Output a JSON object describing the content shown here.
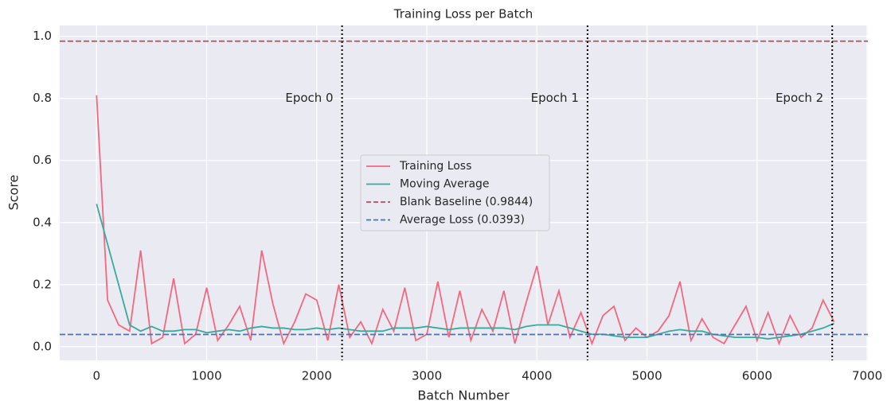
{
  "chart_data": {
    "type": "line",
    "title": "Training Loss per Batch",
    "xlabel": "Batch Number",
    "ylabel": "Score",
    "x": [
      0,
      100,
      200,
      300,
      400,
      500,
      600,
      700,
      800,
      900,
      1000,
      1100,
      1200,
      1300,
      1400,
      1500,
      1600,
      1700,
      1800,
      1900,
      2000,
      2100,
      2200,
      2300,
      2400,
      2500,
      2600,
      2700,
      2800,
      2900,
      3000,
      3100,
      3200,
      3300,
      3400,
      3500,
      3600,
      3700,
      3800,
      3900,
      4000,
      4100,
      4200,
      4300,
      4400,
      4500,
      4600,
      4700,
      4800,
      4900,
      5000,
      5100,
      5200,
      5300,
      5400,
      5500,
      5600,
      5700,
      5800,
      5900,
      6000,
      6100,
      6200,
      6300,
      6400,
      6500,
      6600,
      6700
    ],
    "series": [
      {
        "name": "Training Loss",
        "color": "#f3687f",
        "values": [
          0.81,
          0.15,
          0.07,
          0.05,
          0.31,
          0.01,
          0.03,
          0.22,
          0.01,
          0.04,
          0.19,
          0.02,
          0.07,
          0.13,
          0.02,
          0.31,
          0.14,
          0.01,
          0.08,
          0.17,
          0.15,
          0.02,
          0.2,
          0.03,
          0.08,
          0.01,
          0.12,
          0.05,
          0.19,
          0.02,
          0.04,
          0.21,
          0.03,
          0.18,
          0.02,
          0.12,
          0.05,
          0.18,
          0.01,
          0.14,
          0.26,
          0.07,
          0.18,
          0.03,
          0.11,
          0.01,
          0.1,
          0.13,
          0.02,
          0.06,
          0.03,
          0.05,
          0.1,
          0.21,
          0.02,
          0.09,
          0.03,
          0.01,
          0.07,
          0.13,
          0.02,
          0.11,
          0.01,
          0.1,
          0.03,
          0.06,
          0.15,
          0.08
        ]
      },
      {
        "name": "Moving Average",
        "color": "#36ab9b",
        "values": [
          0.46,
          0.33,
          0.2,
          0.07,
          0.05,
          0.065,
          0.05,
          0.05,
          0.055,
          0.055,
          0.045,
          0.05,
          0.055,
          0.05,
          0.06,
          0.065,
          0.06,
          0.06,
          0.055,
          0.055,
          0.06,
          0.055,
          0.06,
          0.055,
          0.05,
          0.05,
          0.05,
          0.06,
          0.06,
          0.06,
          0.065,
          0.06,
          0.055,
          0.06,
          0.06,
          0.06,
          0.06,
          0.06,
          0.055,
          0.065,
          0.07,
          0.07,
          0.07,
          0.06,
          0.05,
          0.04,
          0.04,
          0.035,
          0.03,
          0.03,
          0.03,
          0.04,
          0.05,
          0.055,
          0.05,
          0.05,
          0.04,
          0.035,
          0.03,
          0.03,
          0.03,
          0.025,
          0.03,
          0.035,
          0.04,
          0.05,
          0.06,
          0.075
        ]
      }
    ],
    "reference_lines": [
      {
        "name": "Blank Baseline (0.9844)",
        "value": 0.9844,
        "color": "#c44e52"
      },
      {
        "name": "Average Loss (0.0393)",
        "value": 0.0393,
        "color": "#4c72b0"
      }
    ],
    "epochs": [
      {
        "label": "Epoch 0",
        "x": 2230
      },
      {
        "label": "Epoch 1",
        "x": 4460
      },
      {
        "label": "Epoch 2",
        "x": 6683
      }
    ],
    "epoch_label_y": 0.8,
    "xlim": [
      -335,
      7007
    ],
    "ylim": [
      -0.044,
      1.035
    ],
    "xticks": [
      0,
      1000,
      2000,
      3000,
      4000,
      5000,
      6000,
      7000
    ],
    "yticks": [
      {
        "value": 0,
        "label": "0.0"
      },
      0.2,
      0.4,
      0.6,
      0.8,
      {
        "value": 1,
        "label": "1.0"
      }
    ],
    "grid": true,
    "legend": "center"
  }
}
